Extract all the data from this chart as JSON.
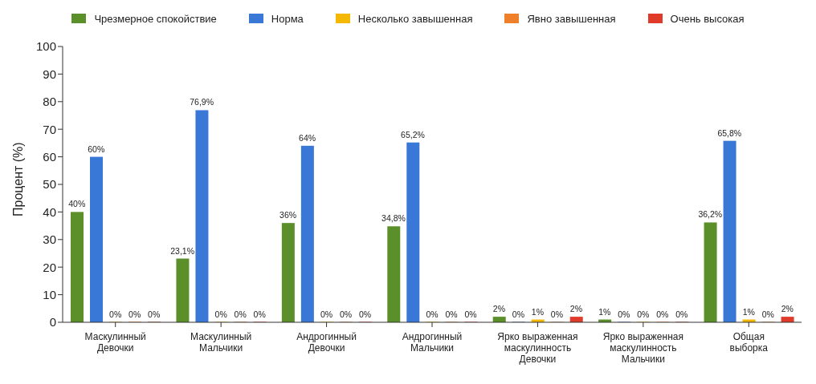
{
  "chart_data": {
    "type": "bar",
    "ylabel": "Процент (%)",
    "categories": [
      "Маскулинный\nДевочки",
      "Маскулинный\nМальчики",
      "Андрогинный\nДевочки",
      "Андрогинный\nМальчики",
      "Ярко выраженная\nмаскулинность\nДевочки",
      "Ярко выраженная\nмаскулинность\nМальчики",
      "Общая\nвыборка"
    ],
    "series": [
      {
        "name": "Чрезмерное спокойствие",
        "color": "#5a8f29",
        "values": [
          40,
          23.1,
          36,
          34.8,
          2,
          1,
          36.2
        ],
        "value_labels": [
          "40%",
          "23,1%",
          "36%",
          "34,8%",
          "2%",
          "1%",
          "36,2%"
        ]
      },
      {
        "name": "Норма",
        "color": "#3a78d8",
        "values": [
          60,
          76.9,
          64,
          65.2,
          0,
          0,
          65.8
        ],
        "value_labels": [
          "60%",
          "76,9%",
          "64%",
          "65,2%",
          "0%",
          "0%",
          "65,8%"
        ]
      },
      {
        "name": "Несколько завышенная",
        "color": "#f5b800",
        "values": [
          0,
          0,
          0,
          0,
          1,
          0,
          1
        ],
        "value_labels": [
          "0%",
          "0%",
          "0%",
          "0%",
          "1%",
          "0%",
          "1%"
        ]
      },
      {
        "name": "Явно завышенная",
        "color": "#f07f2a",
        "values": [
          0,
          0,
          0,
          0,
          0,
          0,
          0
        ],
        "value_labels": [
          "0%",
          "0%",
          "0%",
          "0%",
          "0%",
          "0%",
          "0%"
        ]
      },
      {
        "name": "Очень высокая",
        "color": "#e03a2a",
        "values": [
          0,
          0,
          0,
          0,
          2,
          0,
          2
        ],
        "value_labels": [
          "0%",
          "0%",
          "0%",
          "0%",
          "2%",
          "0%",
          "2%"
        ]
      }
    ],
    "ylim": [
      0,
      100
    ],
    "yticks": [
      0,
      10,
      20,
      30,
      40,
      50,
      60,
      70,
      80,
      90,
      100
    ],
    "grid": false,
    "legend": "top"
  }
}
